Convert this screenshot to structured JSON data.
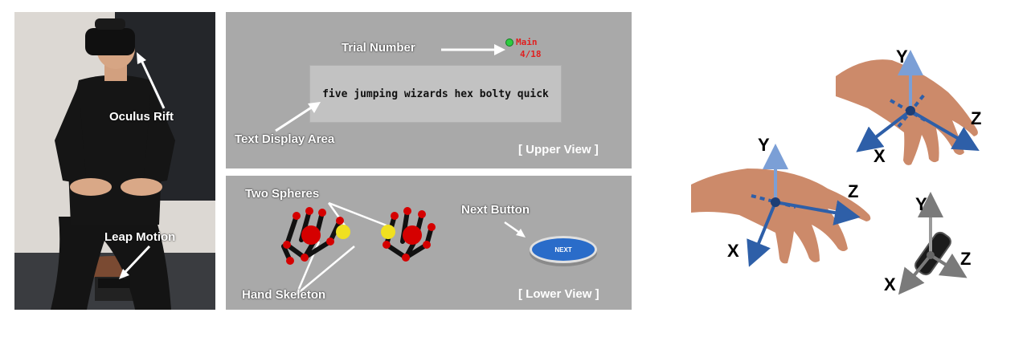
{
  "photo": {
    "oculus_label": "Oculus Rift",
    "leap_label": "Leap Motion"
  },
  "upper_view": {
    "trial_label": "Trial Number",
    "mode": "Main",
    "trial_count": "4/18",
    "sentence": "five jumping wizards hex bolty quick",
    "text_area_label": "Text Display Area",
    "view_tag": "[ Upper View ]"
  },
  "lower_view": {
    "spheres_label": "Two Spheres",
    "next_label": "Next Button",
    "next_button_text": "NEXT",
    "skeleton_label": "Hand Skeleton",
    "view_tag": "[ Lower View ]"
  },
  "axes": {
    "hand_left": {
      "x": "X",
      "y": "Y",
      "z": "Z"
    },
    "hand_right": {
      "x": "X",
      "y": "Y",
      "z": "Z"
    },
    "device": {
      "x": "X",
      "y": "Y",
      "z": "Z"
    },
    "colors": {
      "axis_light": "#7b9fd6",
      "axis_dark": "#2e5fa8",
      "device_axis": "#7a7a7a"
    }
  }
}
